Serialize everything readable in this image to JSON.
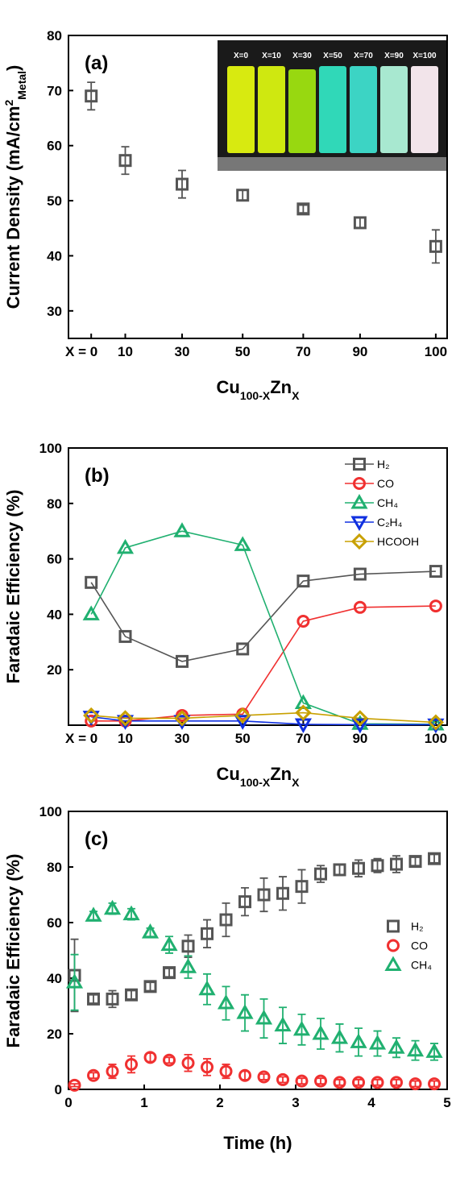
{
  "chart_data": [
    {
      "type": "scatter",
      "panel_label": "(a)",
      "ylabel": {
        "main": "Current Density (mA/cm",
        "sup": "2",
        "sub": "Metal",
        "end": ")"
      },
      "xlabel": {
        "base1": "Cu",
        "sub1": "100-X",
        "base2": "Zn",
        "sub2": "X"
      },
      "categories": [
        "X = 0",
        "10",
        "30",
        "50",
        "70",
        "90",
        "100"
      ],
      "values": [
        69,
        57.3,
        53,
        51,
        48.5,
        46,
        41.7
      ],
      "errors": [
        2.5,
        2.5,
        2.5,
        1,
        0.7,
        1,
        3
      ],
      "color": "#555555",
      "marker": "square",
      "ylim": [
        25,
        80
      ],
      "yticks": [
        30,
        40,
        50,
        60,
        70,
        80
      ],
      "inset_labels": [
        "X=0",
        "X=10",
        "X=30",
        "X=50",
        "X=70",
        "X=90",
        "X=100"
      ]
    },
    {
      "type": "line",
      "panel_label": "(b)",
      "ylabel": {
        "main": "Faradaic Efficiency (%)"
      },
      "xlabel": {
        "base1": "Cu",
        "sub1": "100-X",
        "base2": "Zn",
        "sub2": "X"
      },
      "categories": [
        "X = 0",
        "10",
        "30",
        "50",
        "70",
        "90",
        "100"
      ],
      "ylim": [
        0,
        100
      ],
      "yticks": [
        20,
        40,
        60,
        80,
        100
      ],
      "legend": "upper right",
      "series": [
        {
          "name": "H₂",
          "color": "#555555",
          "marker": "square",
          "values": [
            51.5,
            32,
            23,
            27.5,
            52,
            54.5,
            55.5
          ]
        },
        {
          "name": "CO",
          "color": "#f03030",
          "marker": "circle",
          "values": [
            1.5,
            1.5,
            3.5,
            4,
            37.5,
            42.5,
            43
          ]
        },
        {
          "name": "CH₄",
          "color": "#20b070",
          "marker": "triangle-up",
          "values": [
            40,
            64,
            70,
            65,
            8,
            0.5,
            0.3
          ]
        },
        {
          "name": "C₂H₄",
          "color": "#1030e0",
          "marker": "triangle-down",
          "values": [
            3,
            1.5,
            1.5,
            1.5,
            0.3,
            0.2,
            0.2
          ]
        },
        {
          "name": "HCOOH",
          "color": "#c8a000",
          "marker": "diamond",
          "values": [
            3.5,
            2.5,
            2.5,
            3.5,
            4.5,
            2.5,
            1
          ]
        }
      ]
    },
    {
      "type": "scatter",
      "panel_label": "(c)",
      "ylabel": {
        "main": "Faradaic Efficiency (%)"
      },
      "xlabel": {
        "base1": "Time (h)"
      },
      "x": [
        0.08,
        0.33,
        0.58,
        0.83,
        1.08,
        1.33,
        1.58,
        1.83,
        2.08,
        2.33,
        2.58,
        2.83,
        3.08,
        3.33,
        3.58,
        3.83,
        4.08,
        4.33,
        4.58,
        4.83
      ],
      "xlim": [
        0,
        5
      ],
      "xticks": [
        0,
        1,
        2,
        3,
        4,
        5
      ],
      "ylim": [
        0,
        100
      ],
      "yticks": [
        0,
        20,
        40,
        60,
        80,
        100
      ],
      "legend": "center right",
      "series": [
        {
          "name": "H₂",
          "color": "#555555",
          "marker": "square",
          "values": [
            41,
            32.5,
            32.5,
            34,
            37,
            42,
            51.5,
            56,
            61,
            67.5,
            70,
            70.5,
            73,
            77.5,
            79,
            79.5,
            80.5,
            81,
            82,
            83
          ],
          "errors": [
            13,
            1.5,
            3,
            1.5,
            1.5,
            1.5,
            4,
            5,
            6,
            5,
            6,
            6,
            6,
            3,
            2,
            3,
            2.5,
            3,
            1.5,
            1.5
          ]
        },
        {
          "name": "CO",
          "color": "#f03030",
          "marker": "circle",
          "values": [
            1.5,
            5,
            6.5,
            9,
            11.5,
            10.5,
            9.5,
            8,
            6.5,
            5,
            4.5,
            3.5,
            3,
            3,
            2.5,
            2.5,
            2.5,
            2.5,
            2,
            2
          ],
          "errors": [
            0.5,
            1,
            2.5,
            3,
            1.5,
            1,
            3,
            3,
            2.5,
            1.5,
            1,
            1,
            1,
            1,
            1,
            1,
            1,
            1,
            1,
            1
          ]
        },
        {
          "name": "CH₄",
          "color": "#20b070",
          "marker": "triangle-up",
          "values": [
            38.5,
            62.5,
            65,
            63,
            56.5,
            52,
            44,
            36,
            31,
            27.5,
            25.5,
            23,
            21.5,
            20,
            18.5,
            17,
            16.5,
            15,
            14,
            13.5
          ],
          "errors": [
            10,
            1.5,
            2,
            2,
            1.5,
            3,
            4,
            5.5,
            6,
            6.5,
            7,
            6.5,
            5.5,
            5.5,
            5,
            5,
            4.5,
            3.5,
            3.5,
            3
          ]
        }
      ]
    }
  ]
}
